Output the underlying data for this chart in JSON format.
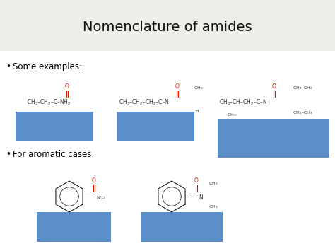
{
  "title": "Nomenclature of amides",
  "title_bg": "#eeeee8",
  "title_fontsize": 14,
  "bg_color": "#ffffff",
  "blue_box_color": "#5b8fc9",
  "bullet1": "Some examples:",
  "bullet2": "For aromatic cases:",
  "bullet_fontsize": 8.5,
  "struct_fontsize": 5.5,
  "sub_fontsize": 4.5,
  "o_color": "#cc2200",
  "text_color": "#333333"
}
